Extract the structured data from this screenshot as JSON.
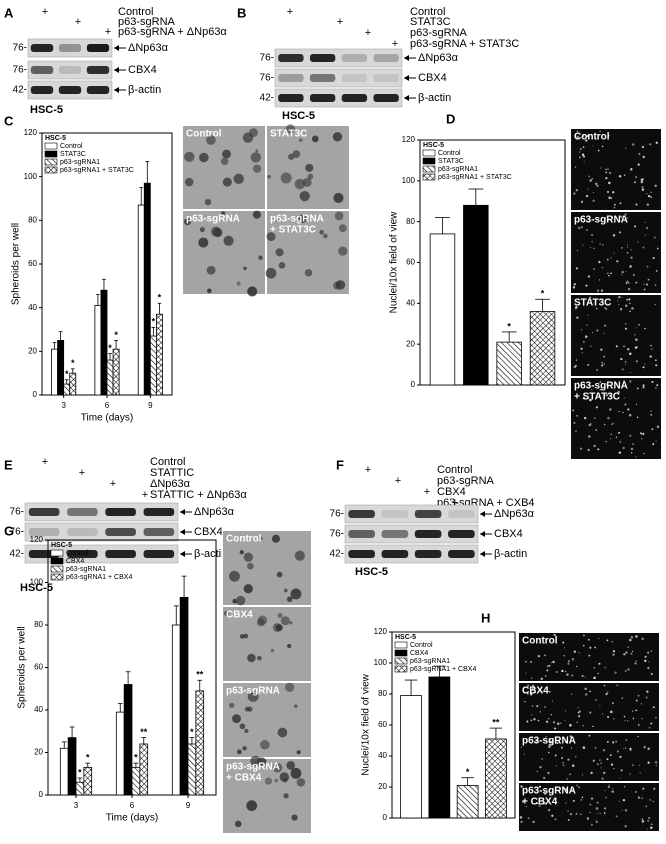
{
  "panel_labels": [
    "A",
    "B",
    "C",
    "D",
    "E",
    "F",
    "G",
    "H"
  ],
  "blots": [
    {
      "conditions": [
        {
          "label": "Control",
          "mark": "+"
        },
        {
          "label": "p63-sgRNA",
          "mark": "+"
        },
        {
          "label": "p63-sgRNA + ΔNp63α",
          "mark": "+"
        }
      ],
      "rows": [
        {
          "size": "76-",
          "protein": "ΔNp63α"
        },
        {
          "size": "76-",
          "protein": "CBX4"
        },
        {
          "size": "42-",
          "protein": "β-actin"
        }
      ],
      "cell_line": "HSC-5"
    },
    {
      "conditions": [
        {
          "label": "Control",
          "mark": "+"
        },
        {
          "label": "STAT3C",
          "mark": "+"
        },
        {
          "label": "p63-sgRNA",
          "mark": "+"
        },
        {
          "label": "p63-sgRNA + STAT3C",
          "mark": "+"
        }
      ],
      "rows": [
        {
          "size": "76-",
          "protein": "ΔNp63α"
        },
        {
          "size": "76-",
          "protein": "CBX4"
        },
        {
          "size": "42-",
          "protein": "β-actin"
        }
      ],
      "cell_line": "HSC-5"
    },
    {
      "conditions": [
        {
          "label": "Control",
          "mark": "+"
        },
        {
          "label": "STATTIC",
          "mark": "+"
        },
        {
          "label": "ΔNp63α",
          "mark": "+"
        },
        {
          "label": "STATTIC + ΔNp63α",
          "mark": "+"
        }
      ],
      "rows": [
        {
          "size": "76-",
          "protein": "ΔNp63α"
        },
        {
          "size": "76-",
          "protein": "CBX4"
        },
        {
          "size": "42-",
          "protein": "β-actin"
        }
      ],
      "cell_line": "HSC-5"
    },
    {
      "conditions": [
        {
          "label": "Control",
          "mark": "+"
        },
        {
          "label": "p63-sgRNA",
          "mark": "+"
        },
        {
          "label": "CBX4",
          "mark": "+"
        },
        {
          "label": "p63-sgRNA + CXB4",
          "mark": "+"
        }
      ],
      "rows": [
        {
          "size": "76-",
          "protein": "ΔNp63α"
        },
        {
          "size": "76-",
          "protein": "CBX4"
        },
        {
          "size": "42-",
          "protein": "β-actin"
        }
      ],
      "cell_line": "HSC-5"
    }
  ],
  "chart_data": [
    {
      "type": "bar",
      "legend_title": "HSC-5",
      "legend": "upper left",
      "ylabel": "Spheroids per well",
      "xlabel": "Time (days)",
      "categories": [
        "3",
        "6",
        "9"
      ],
      "ylim": [
        0,
        120
      ],
      "yticks": [
        0,
        20,
        40,
        60,
        80,
        100,
        120
      ],
      "series": [
        {
          "name": "Control",
          "color": "#ffffff",
          "pattern": "none",
          "values": [
            21,
            41,
            87
          ],
          "errors": [
            3,
            5,
            8
          ]
        },
        {
          "name": "STAT3C",
          "color": "#000000",
          "pattern": "none",
          "values": [
            25,
            48,
            97
          ],
          "errors": [
            4,
            5,
            10
          ]
        },
        {
          "name": "p63-sgRNA1",
          "color": "#ffffff",
          "pattern": "diagonal",
          "values": [
            5,
            16,
            27
          ],
          "errors": [
            2,
            3,
            4
          ],
          "markers": [
            "*",
            "*",
            "*"
          ]
        },
        {
          "name": "p63-sgRNA1 + STAT3C",
          "color": "#ffffff",
          "pattern": "cross",
          "values": [
            10,
            21,
            37
          ],
          "errors": [
            2,
            4,
            5
          ],
          "markers": [
            "*",
            "*",
            "*"
          ]
        }
      ]
    },
    {
      "type": "bar",
      "legend_title": "HSC-5",
      "legend": "upper left",
      "ylabel": "Nuclei/10x field of view",
      "ylim": [
        0,
        120
      ],
      "yticks": [
        0,
        20,
        40,
        60,
        80,
        100,
        120
      ],
      "series": [
        {
          "name": "Control",
          "color": "#ffffff",
          "pattern": "none",
          "values": [
            74
          ],
          "errors": [
            8
          ]
        },
        {
          "name": "STAT3C",
          "color": "#000000",
          "pattern": "none",
          "values": [
            88
          ],
          "errors": [
            8
          ]
        },
        {
          "name": "p63-sgRNA1",
          "color": "#ffffff",
          "pattern": "diagonal",
          "values": [
            21
          ],
          "errors": [
            5
          ],
          "markers": [
            "*"
          ]
        },
        {
          "name": "p63-sgRNA1 + STAT3C",
          "color": "#ffffff",
          "pattern": "cross",
          "values": [
            36
          ],
          "errors": [
            6
          ],
          "markers": [
            "*"
          ]
        }
      ]
    },
    {
      "type": "bar",
      "legend_title": "HSC-5",
      "legend": "upper left",
      "ylabel": "Spheroids per well",
      "xlabel": "Time (days)",
      "categories": [
        "3",
        "6",
        "9"
      ],
      "ylim": [
        0,
        120
      ],
      "yticks": [
        0,
        20,
        40,
        60,
        80,
        100,
        120
      ],
      "series": [
        {
          "name": "Control",
          "color": "#ffffff",
          "pattern": "none",
          "values": [
            22,
            39,
            80
          ],
          "errors": [
            3,
            4,
            9
          ]
        },
        {
          "name": "CBX4",
          "color": "#000000",
          "pattern": "none",
          "values": [
            27,
            52,
            93
          ],
          "errors": [
            5,
            6,
            10
          ]
        },
        {
          "name": "p63-sgRNA1",
          "color": "#ffffff",
          "pattern": "diagonal",
          "values": [
            6,
            13,
            24
          ],
          "errors": [
            2,
            2,
            3
          ],
          "markers": [
            "*",
            "*",
            "*"
          ]
        },
        {
          "name": "p63-sgRNA1 + CBX4",
          "color": "#ffffff",
          "pattern": "cross",
          "values": [
            13,
            24,
            49
          ],
          "errors": [
            2,
            3,
            5
          ],
          "markers": [
            "*",
            "**",
            "**"
          ]
        }
      ]
    },
    {
      "type": "bar",
      "legend_title": "HSC-5",
      "legend": "upper left",
      "ylabel": "Nuclei/10x field of view",
      "ylim": [
        0,
        120
      ],
      "yticks": [
        0,
        20,
        40,
        60,
        80,
        100,
        120
      ],
      "series": [
        {
          "name": "Control",
          "color": "#ffffff",
          "pattern": "none",
          "values": [
            79
          ],
          "errors": [
            10
          ]
        },
        {
          "name": "CBX4",
          "color": "#000000",
          "pattern": "none",
          "values": [
            91
          ],
          "errors": [
            7
          ]
        },
        {
          "name": "p63-sgRNA1",
          "color": "#ffffff",
          "pattern": "diagonal",
          "values": [
            21
          ],
          "errors": [
            5
          ],
          "markers": [
            "*"
          ]
        },
        {
          "name": "p63-sgRNA1 + CBX4",
          "color": "#ffffff",
          "pattern": "cross",
          "values": [
            51
          ],
          "errors": [
            7
          ],
          "markers": [
            "**"
          ]
        }
      ]
    }
  ],
  "micrographs": [
    [
      [
        "Control"
      ],
      [
        "STAT3C"
      ],
      [
        "p63-sgRNA"
      ],
      [
        "p63-sgRNA",
        "+ STAT3C"
      ]
    ],
    [
      [
        "Control"
      ],
      [
        "p63-sgRNA"
      ],
      [
        "STAT3C"
      ],
      [
        "p63-sgRNA",
        "+ STAT3C"
      ]
    ],
    [
      [
        "Control"
      ],
      [
        "CBX4"
      ],
      [
        "p63-sgRNA"
      ],
      [
        "p63-sgRNA",
        "+ CBX4"
      ]
    ],
    [
      [
        "Control"
      ],
      [
        "CBX4"
      ],
      [
        "p63-sgRNA"
      ],
      [
        "p63-sgRNA",
        "+ CBX4"
      ]
    ]
  ]
}
